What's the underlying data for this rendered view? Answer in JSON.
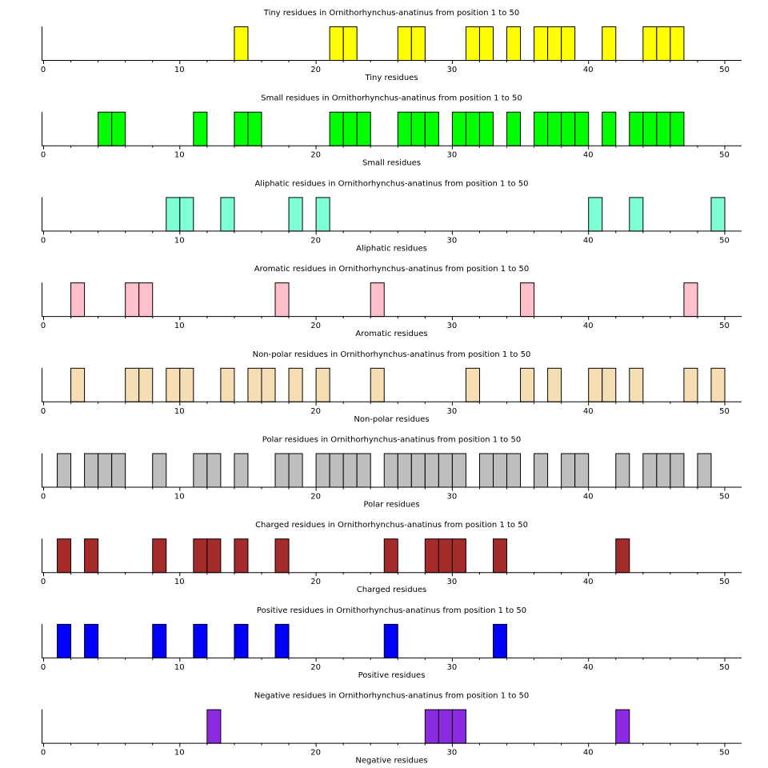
{
  "chart_data": [
    {
      "type": "bar",
      "title": "Tiny residues in Ornithorhynchus-anatinus from position 1 to 50",
      "xlabel": "Tiny residues",
      "color": "#ffff00",
      "xlim": [
        0,
        50
      ],
      "xticks": [
        0,
        10,
        20,
        30,
        40,
        50
      ],
      "positions": [
        15,
        22,
        23,
        27,
        28,
        32,
        33,
        35,
        37,
        38,
        39,
        42,
        45,
        46,
        47
      ]
    },
    {
      "type": "bar",
      "title": "Small residues in Ornithorhynchus-anatinus from position 1 to 50",
      "xlabel": "Small residues",
      "color": "#00ff00",
      "xlim": [
        0,
        50
      ],
      "xticks": [
        0,
        10,
        20,
        30,
        40,
        50
      ],
      "positions": [
        5,
        6,
        12,
        15,
        16,
        22,
        23,
        24,
        27,
        28,
        29,
        31,
        32,
        33,
        35,
        37,
        38,
        39,
        40,
        42,
        44,
        45,
        46,
        47
      ]
    },
    {
      "type": "bar",
      "title": "Aliphatic residues in Ornithorhynchus-anatinus from position 1 to 50",
      "xlabel": "Aliphatic residues",
      "color": "#7fffd4",
      "xlim": [
        0,
        50
      ],
      "xticks": [
        0,
        10,
        20,
        30,
        40,
        50
      ],
      "positions": [
        10,
        11,
        14,
        19,
        21,
        41,
        44,
        50
      ]
    },
    {
      "type": "bar",
      "title": "Aromatic residues in Ornithorhynchus-anatinus from position 1 to 50",
      "xlabel": "Aromatic residues",
      "color": "#ffc0cb",
      "xlim": [
        0,
        50
      ],
      "xticks": [
        0,
        10,
        20,
        30,
        40,
        50
      ],
      "positions": [
        3,
        7,
        8,
        18,
        25,
        36,
        48
      ]
    },
    {
      "type": "bar",
      "title": "Non-polar residues in Ornithorhynchus-anatinus from position 1 to 50",
      "xlabel": "Non-polar residues",
      "color": "#f5deb3",
      "xlim": [
        0,
        50
      ],
      "xticks": [
        0,
        10,
        20,
        30,
        40,
        50
      ],
      "positions": [
        3,
        7,
        8,
        10,
        11,
        14,
        16,
        17,
        19,
        21,
        25,
        32,
        36,
        38,
        41,
        42,
        44,
        48,
        50
      ]
    },
    {
      "type": "bar",
      "title": "Polar residues in Ornithorhynchus-anatinus from position 1 to 50",
      "xlabel": "Polar residues",
      "color": "#bebebe",
      "xlim": [
        0,
        50
      ],
      "xticks": [
        0,
        10,
        20,
        30,
        40,
        50
      ],
      "positions": [
        2,
        4,
        5,
        6,
        9,
        12,
        13,
        15,
        18,
        19,
        21,
        22,
        23,
        24,
        26,
        27,
        28,
        29,
        30,
        31,
        33,
        34,
        35,
        37,
        39,
        40,
        43,
        45,
        46,
        47,
        49
      ]
    },
    {
      "type": "bar",
      "title": "Charged residues in Ornithorhynchus-anatinus from position 1 to 50",
      "xlabel": "Charged residues",
      "color": "#a52a2a",
      "xlim": [
        0,
        50
      ],
      "xticks": [
        0,
        10,
        20,
        30,
        40,
        50
      ],
      "positions": [
        2,
        4,
        9,
        12,
        13,
        15,
        18,
        26,
        29,
        30,
        31,
        34,
        43
      ]
    },
    {
      "type": "bar",
      "title": "Positive residues in Ornithorhynchus-anatinus from position 1 to 50",
      "xlabel": "Positive residues",
      "color": "#0000ff",
      "xlim": [
        0,
        50
      ],
      "xticks": [
        0,
        10,
        20,
        30,
        40,
        50
      ],
      "positions": [
        2,
        4,
        9,
        12,
        15,
        18,
        26,
        34
      ]
    },
    {
      "type": "bar",
      "title": "Negative residues in Ornithorhynchus-anatinus from position 1 to 50",
      "xlabel": "Negative residues",
      "color": "#8a2be2",
      "xlim": [
        0,
        50
      ],
      "xticks": [
        0,
        10,
        20,
        30,
        40,
        50
      ],
      "positions": [
        13,
        29,
        30,
        31,
        43
      ]
    }
  ]
}
